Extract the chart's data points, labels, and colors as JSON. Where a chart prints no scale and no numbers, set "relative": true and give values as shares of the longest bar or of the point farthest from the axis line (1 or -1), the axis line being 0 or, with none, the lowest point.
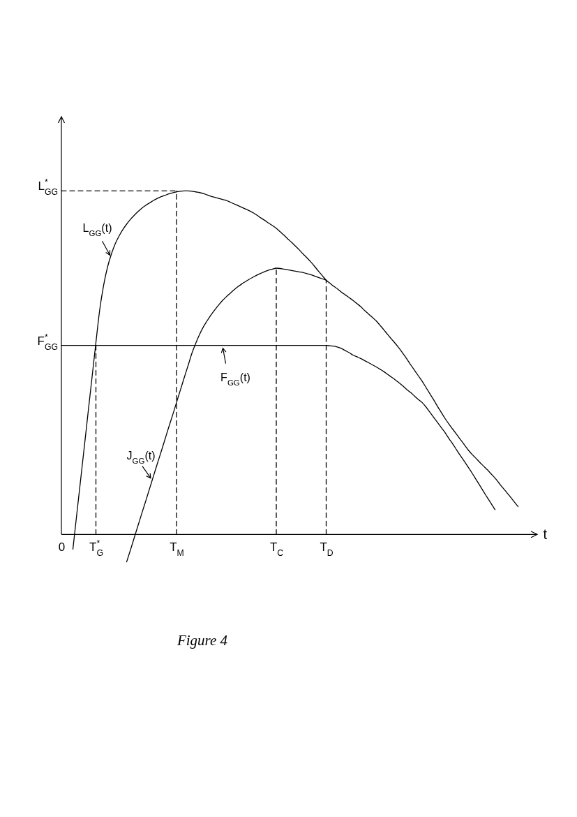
{
  "chart_data": {
    "type": "line",
    "relative": true,
    "xlabel": "t",
    "categories": [
      "0",
      null,
      null,
      null,
      null,
      null,
      null,
      null,
      null,
      "T$^{*}$$_{G}$",
      null,
      null,
      null,
      null,
      null,
      null,
      null,
      null,
      null,
      null,
      null,
      null,
      null,
      null,
      null,
      null,
      null,
      null,
      null,
      null,
      "T$_{M}$",
      null,
      null,
      null,
      null,
      null,
      null,
      null,
      null,
      null,
      null,
      null,
      null,
      null,
      null,
      null,
      null,
      null,
      null,
      null,
      null,
      null,
      null,
      null,
      null,
      null,
      "T$_{C}$",
      null,
      null,
      null,
      null,
      null,
      null,
      null,
      null,
      null,
      null,
      null,
      null,
      "T$_{D}$",
      null,
      null,
      null,
      null,
      null,
      null,
      null,
      null,
      null,
      null,
      null,
      null,
      null,
      null,
      null,
      null,
      null,
      null,
      null,
      null,
      null,
      null,
      null,
      null,
      null,
      null,
      null,
      null,
      null,
      null,
      null,
      null,
      null,
      null,
      null,
      null,
      null,
      null,
      null,
      null,
      null,
      null,
      null,
      null,
      null,
      null,
      null,
      null,
      null,
      null,
      null,
      null,
      null,
      null,
      null
    ],
    "series": [
      {
        "name": "L$_{GG}$(t)",
        "color": "#000000",
        "values": [
          null,
          null,
          null,
          -0.043,
          0.058,
          0.158,
          0.258,
          0.359,
          0.459,
          0.559,
          0.655,
          0.725,
          0.777,
          0.815,
          0.845,
          0.868,
          0.887,
          0.903,
          0.917,
          0.929,
          0.94,
          0.95,
          0.958,
          0.965,
          0.972,
          0.978,
          0.983,
          0.987,
          0.991,
          0.994,
          0.997,
          0.999,
          1,
          1,
          0.999,
          0.997,
          0.995,
          0.992,
          0.988,
          0.984,
          0.981,
          0.978,
          0.975,
          0.972,
          0.967,
          0.962,
          0.957,
          0.952,
          0.947,
          0.942,
          0.936,
          0.929,
          0.921,
          0.914,
          0.906,
          0.899,
          0.891,
          0.881,
          0.871,
          0.86,
          0.85,
          0.839,
          0.828,
          0.816,
          0.805,
          0.793,
          0.78,
          0.766,
          0.753,
          0.74,
          0.731,
          0.722,
          0.714,
          0.705,
          0.697,
          0.689,
          0.681,
          0.672,
          0.663,
          0.652,
          0.642,
          0.632,
          0.622,
          0.609,
          0.596,
          0.582,
          0.569,
          0.556,
          0.542,
          0.527,
          0.511,
          0.494,
          0.478,
          0.462,
          0.446,
          0.428,
          0.41,
          0.392,
          0.373,
          0.355,
          0.337,
          0.321,
          0.306,
          0.291,
          0.276,
          0.261,
          0.246,
          0.233,
          0.222,
          0.21,
          0.199,
          0.188,
          0.176,
          0.164,
          0.15,
          0.136,
          0.123,
          0.109,
          0.095,
          0.081,
          null,
          null,
          null,
          null,
          null
        ]
      },
      {
        "name": "J$_{GG}$(t)",
        "color": "#000000",
        "values": [
          null,
          null,
          null,
          null,
          null,
          null,
          null,
          null,
          null,
          null,
          null,
          null,
          null,
          null,
          null,
          null,
          null,
          -0.08,
          -0.045,
          -0.009,
          0.027,
          0.063,
          0.098,
          0.134,
          0.17,
          0.206,
          0.241,
          0.277,
          0.313,
          0.348,
          0.384,
          0.42,
          0.456,
          0.491,
          0.527,
          0.556,
          0.582,
          0.604,
          0.622,
          0.639,
          0.654,
          0.668,
          0.681,
          0.692,
          0.702,
          0.712,
          0.721,
          0.729,
          0.736,
          0.743,
          0.749,
          0.755,
          0.76,
          0.765,
          0.769,
          0.772,
          0.775,
          0.774,
          0.772,
          0.77,
          0.768,
          0.766,
          0.764,
          0.762,
          0.759,
          0.756,
          0.752,
          0.748,
          0.744,
          0.74,
          null,
          null,
          null,
          null,
          null,
          null,
          null,
          null,
          null,
          null,
          null,
          null,
          null,
          null,
          null,
          null,
          null,
          null,
          null,
          null,
          null,
          null,
          null,
          null,
          null,
          null,
          null,
          null,
          null,
          null,
          null,
          null,
          null,
          null,
          null,
          null,
          null,
          null,
          null,
          null,
          null,
          null,
          null,
          null,
          null,
          null,
          null,
          null,
          null,
          null,
          null,
          null,
          null,
          null,
          null
        ]
      },
      {
        "name": "F$_{GG}$(t)",
        "color": "#000000",
        "values": [
          0.55,
          0.55,
          0.55,
          0.55,
          0.55,
          0.55,
          0.55,
          0.55,
          0.55,
          0.55,
          0.55,
          0.55,
          0.55,
          0.55,
          0.55,
          0.55,
          0.55,
          0.55,
          0.55,
          0.55,
          0.55,
          0.55,
          0.55,
          0.55,
          0.55,
          0.55,
          0.55,
          0.55,
          0.55,
          0.55,
          0.55,
          0.55,
          0.55,
          0.55,
          0.55,
          0.55,
          0.55,
          0.55,
          0.55,
          0.55,
          0.55,
          0.55,
          0.55,
          0.55,
          0.55,
          0.55,
          0.55,
          0.55,
          0.55,
          0.55,
          0.55,
          0.55,
          0.55,
          0.55,
          0.55,
          0.55,
          0.55,
          0.55,
          0.55,
          0.55,
          0.55,
          0.55,
          0.55,
          0.55,
          0.55,
          0.55,
          0.55,
          0.55,
          0.55,
          0.55,
          0.549,
          0.548,
          0.545,
          0.541,
          0.535,
          0.529,
          0.522,
          0.517,
          0.512,
          0.506,
          0.5,
          0.494,
          0.488,
          0.481,
          0.474,
          0.466,
          0.458,
          0.45,
          0.441,
          0.432,
          0.422,
          0.413,
          0.403,
          0.393,
          0.384,
          0.371,
          0.356,
          0.341,
          0.326,
          0.311,
          0.296,
          0.279,
          0.263,
          0.246,
          0.229,
          0.213,
          0.196,
          0.179,
          0.161,
          0.143,
          0.125,
          0.107,
          0.09,
          0.072,
          null,
          null,
          null,
          null,
          null,
          null,
          null,
          null,
          null,
          null,
          null
        ]
      },
      {
        "color": "#000000",
        "line_style": "dashed",
        "x": [
          "0",
          "T$_{M}$"
        ],
        "values": [
          1,
          1
        ]
      },
      {
        "color": "#000000",
        "line_style": "dashed",
        "x": [
          "T$^{*}$$_{G}$",
          "T$^{*}$$_{G}$"
        ],
        "values": [
          0,
          0.55
        ]
      },
      {
        "color": "#000000",
        "line_style": "dashed",
        "x": [
          "T$_{M}$",
          "T$_{M}$"
        ],
        "values": [
          0,
          1
        ]
      },
      {
        "color": "#000000",
        "line_style": "dashed",
        "x": [
          "T$_{C}$",
          "T$_{C}$"
        ],
        "values": [
          0,
          0.775
        ]
      },
      {
        "color": "#000000",
        "line_style": "dashed",
        "x": [
          "T$_{D}$",
          "T$_{D}$"
        ],
        "values": [
          0,
          0.74
        ]
      }
    ],
    "annotations": [
      {
        "text": "L$^{*}$$_{GG}$",
        "x": "0",
        "y": 1
      },
      {
        "text": "F$^{*}$$_{GG}$",
        "x": "0",
        "y": 0.55
      },
      "Figure 4"
    ]
  }
}
